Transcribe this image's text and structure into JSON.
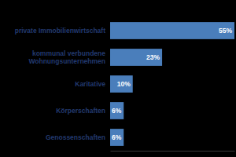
{
  "chart_data": {
    "type": "bar",
    "orientation": "horizontal",
    "categories": [
      "private Immobilienwirtschaft",
      "kommunal verbundene Wohnungsunternehmen",
      "Karitative",
      "Körperschaften",
      "Genossenschaften"
    ],
    "values": [
      55,
      23,
      10,
      6,
      6
    ],
    "value_labels": [
      "55%",
      "23%",
      "10%",
      "6%",
      "6%"
    ],
    "color": "#4a7ebb",
    "xlim": [
      0,
      55
    ],
    "data_labels": true,
    "tick_labels": "y"
  }
}
